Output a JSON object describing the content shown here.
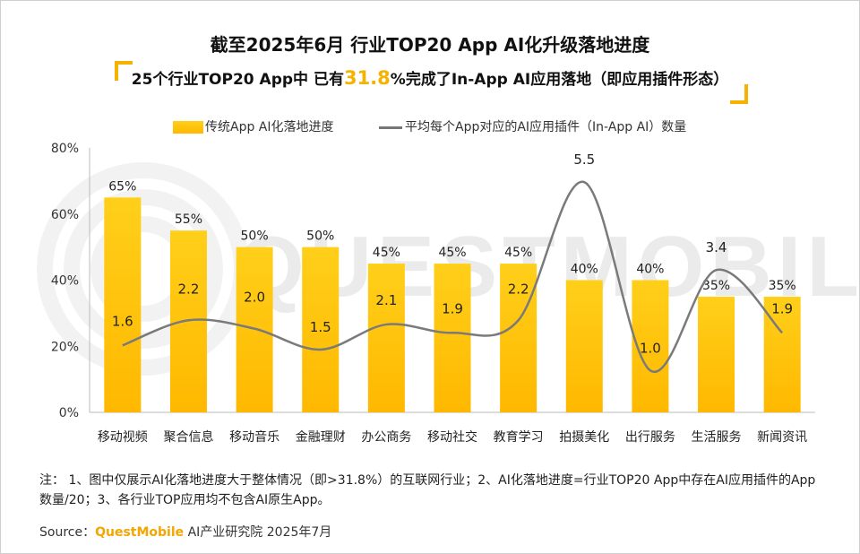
{
  "title": "截至2025年6月 行业TOP20 App AI化升级落地进度",
  "subtitle": {
    "prefix": "25个行业TOP20 App中 已有",
    "highlight": "31.8",
    "suffix": "%完成了In-App AI应用落地（即应用插件形态）"
  },
  "legend": {
    "bar": "传统App AI化落地进度",
    "line": "平均每个App对应的AI应用插件（In-App AI）数量"
  },
  "colors": {
    "bar_top": "#ffcf1a",
    "bar_bottom": "#ffb800",
    "line": "#7a7a7a",
    "accent": "#f5b300"
  },
  "chart_data": {
    "type": "bar",
    "categories": [
      "移动视频",
      "聚合信息",
      "移动音乐",
      "金融理财",
      "办公商务",
      "移动社交",
      "教育学习",
      "拍摄美化",
      "出行服务",
      "生活服务",
      "新闻资讯"
    ],
    "series": [
      {
        "name": "传统App AI化落地进度",
        "type": "bar",
        "values": [
          65,
          55,
          50,
          50,
          45,
          45,
          45,
          40,
          40,
          35,
          35
        ],
        "labels": [
          "65%",
          "55%",
          "50%",
          "50%",
          "45%",
          "45%",
          "45%",
          "40%",
          "40%",
          "35%",
          "35%"
        ]
      },
      {
        "name": "平均每个App对应的AI应用插件（In-App AI）数量",
        "type": "line",
        "smooth": true,
        "values": [
          1.6,
          2.2,
          2.0,
          1.5,
          2.1,
          1.9,
          2.2,
          5.5,
          1.0,
          3.4,
          1.9
        ],
        "labels": [
          "1.6",
          "2.2",
          "2.0",
          "1.5",
          "2.1",
          "1.9",
          "2.2",
          "5.5",
          "1.0",
          "3.4",
          "1.9"
        ]
      }
    ],
    "ylim": [
      0,
      80
    ],
    "yticks": [
      0,
      20,
      40,
      60,
      80
    ],
    "ytick_labels": [
      "0%",
      "20%",
      "40%",
      "60%",
      "80%"
    ],
    "grid": false,
    "legend_position": "top"
  },
  "notes": "注： 1、图中仅展示AI化落地进度大于整体情况（即>31.8%）的互联网行业；2、AI化落地进度=行业TOP20 App中存在AI应用插件的App数量/20；3、各行业TOP应用均不包含AI原生App。",
  "source": {
    "prefix": "Source：",
    "brand": "QuestMobile",
    "suffix": " AI产业研究院 2025年7月"
  },
  "watermark": "QUESTMOBILE"
}
